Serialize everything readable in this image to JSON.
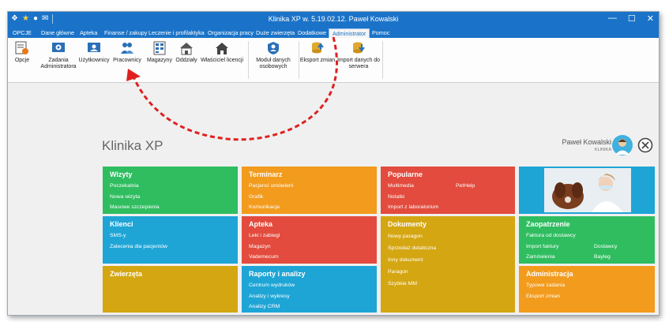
{
  "titlebar": {
    "title": "Klinika XP w. 5.19.02.12. Paweł Kowalski",
    "minimize": "—",
    "maximize": "☐",
    "close": "✕"
  },
  "menu": [
    "OPCJE",
    "Dane główne",
    "Apteka",
    "Finanse / zakupy",
    "Leczenie i profilaktyka",
    "Organizacja pracy",
    "Duże zwierzęta",
    "Dodatkowe",
    "Administrator",
    "Pomoc"
  ],
  "ribbon": {
    "opcje": "Opcje",
    "zadania_l1": "Zadania",
    "zadania_l2": "Administratora",
    "uzytkownicy": "Użytkownicy",
    "pracownicy": "Pracownicy",
    "magazyny": "Magazyny",
    "oddzialy": "Oddziały",
    "wlasciciel": "Właściciel licencji",
    "moduly_l1": "Moduł danych",
    "moduly_l2": "osobowych",
    "eksport": "Eksport zmian",
    "import_l1": "Import danych do",
    "import_l2": "serwera"
  },
  "app_title": "Klinika XP",
  "user": {
    "name": "Paweł Kowalski",
    "org": "KLINIKA"
  },
  "colors": {
    "green": "#2fbd60",
    "orange": "#f29b1d",
    "red": "#e24b3d",
    "blue": "#1ea5d6",
    "gold": "#d4a612",
    "arrow": "#e02020"
  },
  "tiles": {
    "wizyty": {
      "title": "Wizyty",
      "items": [
        "Poczekalnia",
        "Nowa wizyta",
        "Masowe szczepienia"
      ]
    },
    "terminarz": {
      "title": "Terminarz",
      "items": [
        "Pacjenci umówieni",
        "Grafik",
        "Komunikacja"
      ]
    },
    "popularne": {
      "title": "Popularne",
      "items": [
        "Multimedia",
        "Notatki",
        "Import z laboratorium",
        "PetHelp"
      ]
    },
    "klienci": {
      "title": "Klienci",
      "items": [
        "SMS-y",
        "Zalecenia dla pacjentów"
      ]
    },
    "apteka": {
      "title": "Apteka",
      "items": [
        "Leki i zabiegi",
        "Magazyn",
        "Vademecum"
      ]
    },
    "dokumenty": {
      "title": "Dokumenty",
      "items": [
        "Nowy paragon",
        "Sprzedaż detaliczna",
        "Inny dokument",
        "Paragon",
        "Szybkie MM"
      ]
    },
    "zaopatrzenie": {
      "title": "Zaopatrzenie",
      "items": [
        "Faktura od dostawcy",
        "Import faktury",
        "Zamówienia",
        "Dostawcy",
        "Bayleg"
      ]
    },
    "zwierzeta": {
      "title": "Zwierzęta",
      "items": []
    },
    "raporty": {
      "title": "Raporty i analizy",
      "items": [
        "Centrum wydruków",
        "Analizy i wykresy",
        "Analizy CRM"
      ]
    },
    "administracja": {
      "title": "Administracja",
      "items": [
        "Typowe zadania",
        "Eksport zmian"
      ]
    }
  }
}
